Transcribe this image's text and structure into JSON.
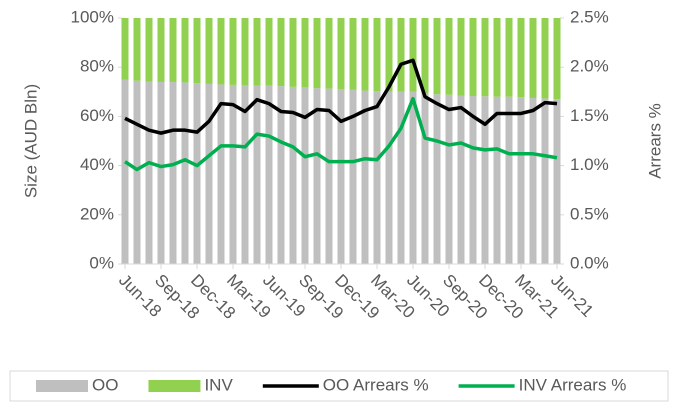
{
  "chart_data": {
    "type": "bar",
    "stacked": true,
    "y_axis_label": "Size (AUD Bln)",
    "y2_axis_label": "Arrears %",
    "categories": [
      "Jun-18",
      null,
      null,
      "Sep-18",
      null,
      null,
      "Dec-18",
      null,
      null,
      "Mar-19",
      null,
      null,
      "Jun-19",
      null,
      null,
      "Sep-19",
      null,
      null,
      "Dec-19",
      null,
      null,
      "Mar-20",
      null,
      null,
      "Jun-20",
      null,
      null,
      "Sep-20",
      null,
      null,
      "Dec-20",
      null,
      null,
      "Mar-21",
      null,
      null,
      "Jun-21"
    ],
    "ylim": [
      0,
      100
    ],
    "yticks": [
      {
        "value": 0,
        "label": "0%"
      },
      {
        "value": 20,
        "label": "20%"
      },
      {
        "value": 40,
        "label": "40%"
      },
      {
        "value": 60,
        "label": "60%"
      },
      {
        "value": 80,
        "label": "80%"
      },
      {
        "value": 100,
        "label": "100%"
      }
    ],
    "y2lim": [
      0,
      2.5
    ],
    "y2ticks": [
      {
        "value": 0,
        "label": "0.0%"
      },
      {
        "value": 0.5,
        "label": "0.5%"
      },
      {
        "value": 1,
        "label": "1.0%"
      },
      {
        "value": 1.5,
        "label": "1.5%"
      },
      {
        "value": 2,
        "label": "2.0%"
      },
      {
        "value": 2.5,
        "label": "2.5%"
      }
    ],
    "legend": "bottom",
    "series": [
      {
        "name": "OO",
        "type": "bar",
        "color": "#bfbfbf",
        "values": [
          75,
          74.5,
          74.2,
          74,
          74,
          73.8,
          73.5,
          73.2,
          73,
          72.8,
          72.6,
          72.5,
          72.5,
          72.3,
          72,
          71.8,
          71.5,
          71.3,
          71,
          70.8,
          70.5,
          70.2,
          70,
          70,
          70,
          69.5,
          69,
          68.8,
          68.5,
          68.3,
          68.2,
          68,
          68,
          67.8,
          67.5,
          67.3,
          67
        ]
      },
      {
        "name": "INV",
        "type": "bar",
        "color": "#92d050",
        "values": [
          25,
          25.5,
          25.8,
          26,
          26,
          26.2,
          26.5,
          26.8,
          27,
          27.2,
          27.4,
          27.5,
          27.5,
          27.7,
          28,
          28.2,
          28.5,
          28.7,
          29,
          29.2,
          29.5,
          29.8,
          30,
          30,
          30,
          30.5,
          31,
          31.2,
          31.5,
          31.7,
          31.8,
          32,
          32,
          32.2,
          32.5,
          32.7,
          33
        ]
      },
      {
        "name": "OO Arrears %",
        "type": "line",
        "axis": "y2",
        "color": "#000000",
        "values": [
          1.48,
          1.42,
          1.36,
          1.33,
          1.36,
          1.36,
          1.34,
          1.45,
          1.63,
          1.62,
          1.55,
          1.67,
          1.63,
          1.55,
          1.54,
          1.49,
          1.57,
          1.56,
          1.45,
          1.5,
          1.56,
          1.6,
          1.8,
          2.03,
          2.07,
          1.7,
          1.63,
          1.57,
          1.59,
          1.5,
          1.42,
          1.53,
          1.53,
          1.53,
          1.56,
          1.64,
          1.63
        ]
      },
      {
        "name": "INV Arrears %",
        "type": "line",
        "axis": "y2",
        "color": "#00b050",
        "values": [
          1.04,
          0.96,
          1.03,
          0.99,
          1.01,
          1.06,
          1.0,
          1.1,
          1.2,
          1.2,
          1.19,
          1.32,
          1.3,
          1.24,
          1.19,
          1.09,
          1.12,
          1.04,
          1.04,
          1.04,
          1.07,
          1.06,
          1.2,
          1.38,
          1.68,
          1.28,
          1.25,
          1.21,
          1.23,
          1.18,
          1.16,
          1.17,
          1.12,
          1.12,
          1.12,
          1.1,
          1.08
        ]
      }
    ]
  }
}
